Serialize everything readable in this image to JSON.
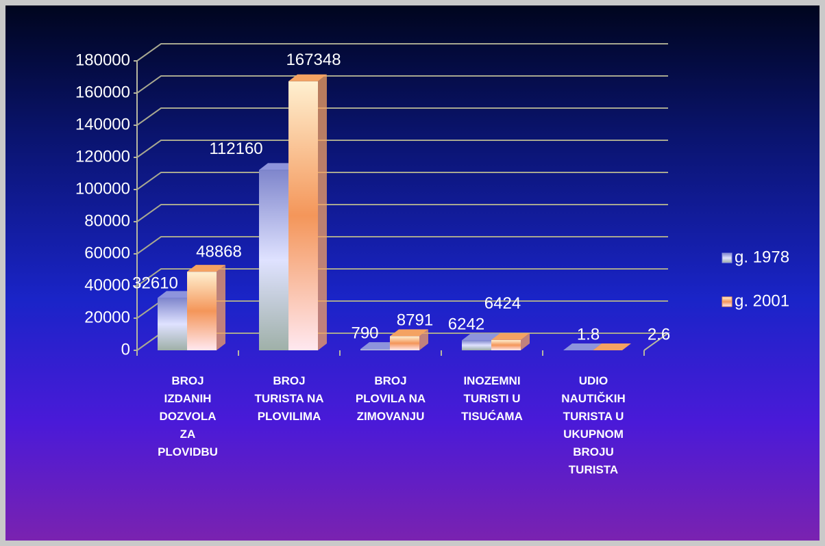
{
  "chart_data": {
    "type": "bar3d",
    "categories": [
      "BROJ\nIZDANIH\nDOZVOLA\nZA\nPLOVIDBU",
      "BROJ\nTURISTA NA\nPLOVILIMA",
      "BROJ\nPLOVILA NA\nZIMOVANJU",
      "INOZEMNI\nTURISTI U\nTISUĆAMA",
      "UDIO\nNAUTIČKIH\nTURISTA U\nUKUPNOM\nBROJU\nTURISTA"
    ],
    "series": [
      {
        "name": "g. 1978",
        "color": "#8e94dc",
        "values": [
          32610,
          112160,
          790,
          6242,
          1.8
        ]
      },
      {
        "name": "g. 2001",
        "color": "#f4a262",
        "values": [
          48868,
          167348,
          8791,
          6424,
          2.6
        ]
      }
    ],
    "ylim": [
      0,
      180000
    ],
    "yticks": [
      0,
      20000,
      40000,
      60000,
      80000,
      100000,
      120000,
      140000,
      160000,
      180000
    ],
    "grid": true,
    "legend": "right"
  }
}
